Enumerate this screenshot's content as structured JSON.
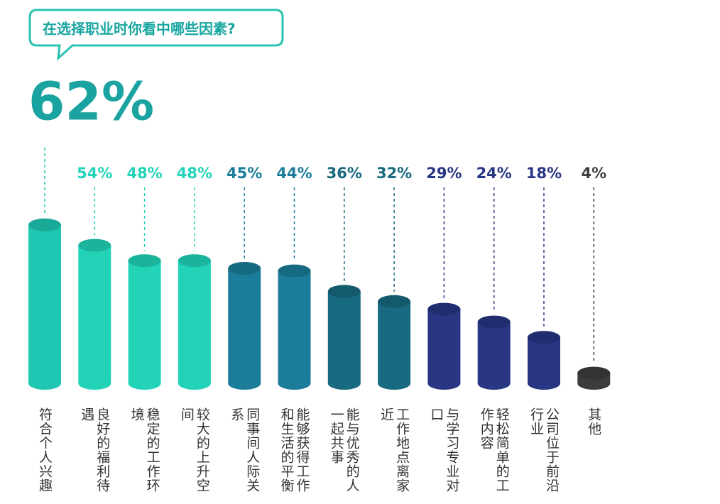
{
  "chart_data": {
    "type": "bar",
    "title": "在选择职业时你看中哪些因素?",
    "categories": [
      "符合个人兴趣",
      "良好的福利待遇",
      "稳定的工作环境",
      "较大的上升空间",
      "同事间人际关系",
      "能够获得工作和生活的平衡",
      "能与优秀的人一起共事",
      "工作地点离家近",
      "与学习专业对口",
      "轻松简单的工作内容",
      "公司位于前沿行业",
      "其他"
    ],
    "values": [
      62,
      54,
      48,
      48,
      45,
      44,
      36,
      32,
      29,
      24,
      18,
      4
    ],
    "value_labels": [
      "62%",
      "54%",
      "48%",
      "48%",
      "45%",
      "44%",
      "36%",
      "32%",
      "29%",
      "24%",
      "18%",
      "4%"
    ],
    "colors": [
      "#1fc7b2",
      "#22d3b8",
      "#22d3b8",
      "#22d3b8",
      "#1b7d99",
      "#1b7d99",
      "#176a80",
      "#176a80",
      "#283684",
      "#283684",
      "#283684",
      "#3c3c3c"
    ]
  }
}
